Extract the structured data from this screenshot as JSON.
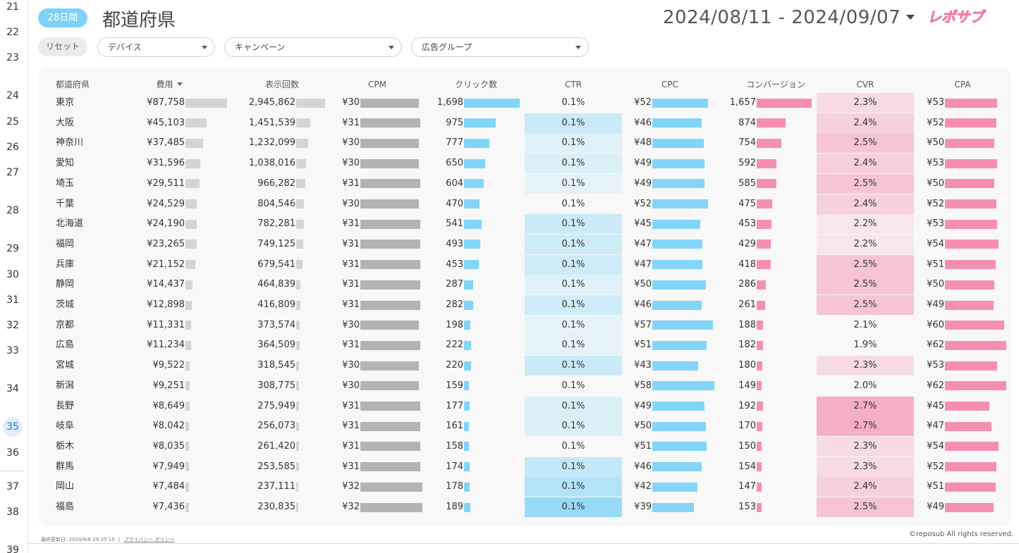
{
  "sheet_rows": {
    "labels": [
      "21",
      "22",
      "23",
      "24",
      "25",
      "26",
      "27",
      "28",
      "29",
      "30",
      "31",
      "32",
      "33",
      "34",
      "35",
      "36",
      "37",
      "38",
      "39"
    ],
    "active": "35"
  },
  "header": {
    "period_badge": "28日間",
    "title": "都道府県",
    "date_range": "2024/08/11 - 2024/09/07",
    "logo_text": "レポサブ"
  },
  "filters": {
    "reset_label": "リセット",
    "device": "デバイス",
    "campaign": "キャンペーン",
    "ad_group": "広告グループ"
  },
  "table": {
    "columns": [
      "都道府県",
      "費用",
      "表示回数",
      "CPM",
      "クリック数",
      "CTR",
      "CPC",
      "コンバージョン",
      "CVR",
      "CPA"
    ],
    "sorted_column": "費用",
    "rows": [
      {
        "pref": "東京",
        "cost": "¥87,758",
        "impr": "2,945,862",
        "cpm": "¥30",
        "clicks": "1,698",
        "ctr": "0.1%",
        "cpc": "¥52",
        "conv": "1,657",
        "cvr": "2.3%",
        "cpa": "¥53"
      },
      {
        "pref": "大阪",
        "cost": "¥45,103",
        "impr": "1,451,539",
        "cpm": "¥31",
        "clicks": "975",
        "ctr": "0.1%",
        "cpc": "¥46",
        "conv": "874",
        "cvr": "2.4%",
        "cpa": "¥52"
      },
      {
        "pref": "神奈川",
        "cost": "¥37,485",
        "impr": "1,232,099",
        "cpm": "¥30",
        "clicks": "777",
        "ctr": "0.1%",
        "cpc": "¥48",
        "conv": "754",
        "cvr": "2.5%",
        "cpa": "¥50"
      },
      {
        "pref": "愛知",
        "cost": "¥31,596",
        "impr": "1,038,016",
        "cpm": "¥30",
        "clicks": "650",
        "ctr": "0.1%",
        "cpc": "¥49",
        "conv": "592",
        "cvr": "2.4%",
        "cpa": "¥53"
      },
      {
        "pref": "埼玉",
        "cost": "¥29,511",
        "impr": "966,282",
        "cpm": "¥31",
        "clicks": "604",
        "ctr": "0.1%",
        "cpc": "¥49",
        "conv": "585",
        "cvr": "2.5%",
        "cpa": "¥50"
      },
      {
        "pref": "千葉",
        "cost": "¥24,529",
        "impr": "804,546",
        "cpm": "¥30",
        "clicks": "470",
        "ctr": "0.1%",
        "cpc": "¥52",
        "conv": "475",
        "cvr": "2.4%",
        "cpa": "¥52"
      },
      {
        "pref": "北海道",
        "cost": "¥24,190",
        "impr": "782,281",
        "cpm": "¥31",
        "clicks": "541",
        "ctr": "0.1%",
        "cpc": "¥45",
        "conv": "453",
        "cvr": "2.2%",
        "cpa": "¥53"
      },
      {
        "pref": "福岡",
        "cost": "¥23,265",
        "impr": "749,125",
        "cpm": "¥31",
        "clicks": "493",
        "ctr": "0.1%",
        "cpc": "¥47",
        "conv": "429",
        "cvr": "2.2%",
        "cpa": "¥54"
      },
      {
        "pref": "兵庫",
        "cost": "¥21,152",
        "impr": "679,541",
        "cpm": "¥31",
        "clicks": "453",
        "ctr": "0.1%",
        "cpc": "¥47",
        "conv": "418",
        "cvr": "2.5%",
        "cpa": "¥51"
      },
      {
        "pref": "静岡",
        "cost": "¥14,437",
        "impr": "464,839",
        "cpm": "¥31",
        "clicks": "287",
        "ctr": "0.1%",
        "cpc": "¥50",
        "conv": "286",
        "cvr": "2.5%",
        "cpa": "¥50"
      },
      {
        "pref": "茨城",
        "cost": "¥12,898",
        "impr": "416,809",
        "cpm": "¥31",
        "clicks": "282",
        "ctr": "0.1%",
        "cpc": "¥46",
        "conv": "261",
        "cvr": "2.5%",
        "cpa": "¥49"
      },
      {
        "pref": "京都",
        "cost": "¥11,331",
        "impr": "373,574",
        "cpm": "¥30",
        "clicks": "198",
        "ctr": "0.1%",
        "cpc": "¥57",
        "conv": "188",
        "cvr": "2.1%",
        "cpa": "¥60"
      },
      {
        "pref": "広島",
        "cost": "¥11,234",
        "impr": "364,509",
        "cpm": "¥31",
        "clicks": "222",
        "ctr": "0.1%",
        "cpc": "¥51",
        "conv": "182",
        "cvr": "1.9%",
        "cpa": "¥62"
      },
      {
        "pref": "宮城",
        "cost": "¥9,522",
        "impr": "318,545",
        "cpm": "¥30",
        "clicks": "220",
        "ctr": "0.1%",
        "cpc": "¥43",
        "conv": "180",
        "cvr": "2.3%",
        "cpa": "¥53"
      },
      {
        "pref": "新潟",
        "cost": "¥9,251",
        "impr": "308,775",
        "cpm": "¥30",
        "clicks": "159",
        "ctr": "0.1%",
        "cpc": "¥58",
        "conv": "149",
        "cvr": "2.0%",
        "cpa": "¥62"
      },
      {
        "pref": "長野",
        "cost": "¥8,649",
        "impr": "275,949",
        "cpm": "¥31",
        "clicks": "177",
        "ctr": "0.1%",
        "cpc": "¥49",
        "conv": "192",
        "cvr": "2.7%",
        "cpa": "¥45"
      },
      {
        "pref": "岐阜",
        "cost": "¥8,042",
        "impr": "256,073",
        "cpm": "¥31",
        "clicks": "161",
        "ctr": "0.1%",
        "cpc": "¥50",
        "conv": "170",
        "cvr": "2.7%",
        "cpa": "¥47"
      },
      {
        "pref": "栃木",
        "cost": "¥8,035",
        "impr": "261,420",
        "cpm": "¥31",
        "clicks": "158",
        "ctr": "0.1%",
        "cpc": "¥51",
        "conv": "150",
        "cvr": "2.3%",
        "cpa": "¥54"
      },
      {
        "pref": "群馬",
        "cost": "¥7,949",
        "impr": "253,585",
        "cpm": "¥31",
        "clicks": "174",
        "ctr": "0.1%",
        "cpc": "¥46",
        "conv": "154",
        "cvr": "2.3%",
        "cpa": "¥52"
      },
      {
        "pref": "岡山",
        "cost": "¥7,484",
        "impr": "237,111",
        "cpm": "¥32",
        "clicks": "178",
        "ctr": "0.1%",
        "cpc": "¥42",
        "conv": "147",
        "cvr": "2.4%",
        "cpa": "¥51"
      },
      {
        "pref": "福島",
        "cost": "¥7,436",
        "impr": "230,835",
        "cpm": "¥32",
        "clicks": "189",
        "ctr": "0.1%",
        "cpc": "¥39",
        "conv": "153",
        "cvr": "2.5%",
        "cpa": "¥49"
      }
    ]
  },
  "footer": {
    "updated": "最終更新日: 2024/9/8 19:35:15",
    "separator": "|",
    "privacy": "プライバシー ポリシー",
    "copyright": "©reposub All rights reserved."
  },
  "colors": {
    "badge": "#7fd2f6",
    "bar_blue": "#82d4f8",
    "bar_pink": "#f58fb1",
    "bar_gray": "#d4d4d4",
    "bar_dgray": "#b3b3b3"
  }
}
